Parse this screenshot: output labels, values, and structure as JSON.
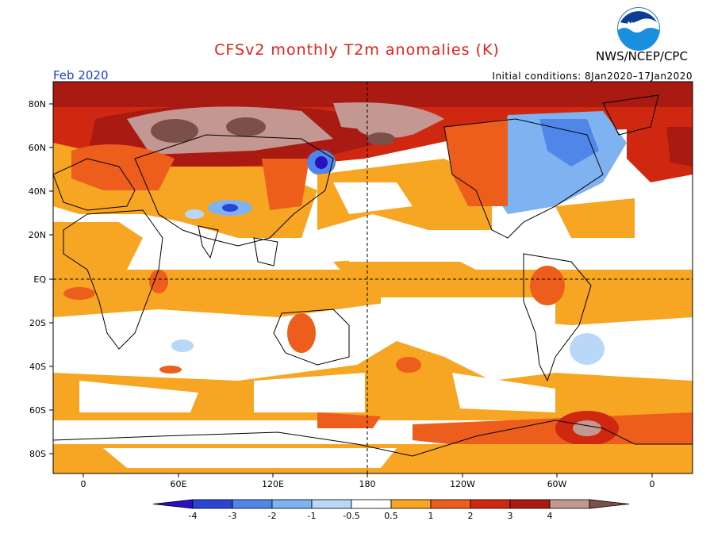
{
  "header": {
    "title": "CFSv2 monthly T2m anomalies (K)",
    "organization": "NWS/NCEP/CPC",
    "month": "Feb 2020",
    "initial_conditions": "Initial conditions: 8Jan2020–17Jan2020",
    "logo_text": "NOAA",
    "logo_icon": "noaa-logo-icon"
  },
  "map": {
    "lat_labels": [
      "80N",
      "60N",
      "40N",
      "20N",
      "EQ",
      "20S",
      "40S",
      "60S",
      "80S"
    ],
    "lon_labels": [
      "0",
      "60E",
      "120E",
      "180",
      "120W",
      "60W",
      "0"
    ]
  },
  "colorbar": {
    "labels": [
      "-4",
      "-3",
      "-2",
      "-1",
      "-0.5",
      "0.5",
      "1",
      "2",
      "3",
      "4"
    ],
    "colors": [
      "#2a10c0",
      "#2a44d6",
      "#4f86e8",
      "#7fb2f0",
      "#b9d8f7",
      "#ffffff",
      "#f6a623",
      "#ed5e1c",
      "#d02810",
      "#a81a12",
      "#c49892",
      "#7a5048"
    ]
  },
  "colors": {
    "title": "#e8201a",
    "month": "#1d3fd9",
    "land_outline": "#000000"
  }
}
